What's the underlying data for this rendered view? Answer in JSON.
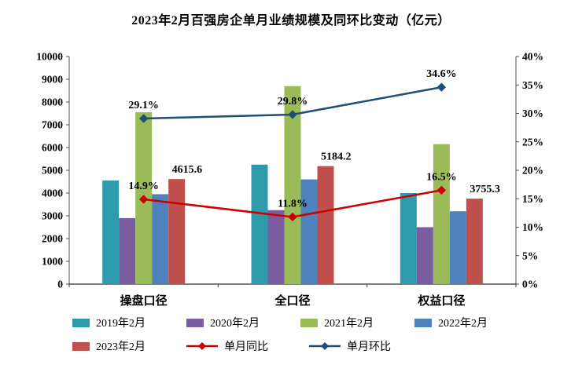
{
  "chart_data": {
    "type": "bar",
    "subtype": "bar-line-combo",
    "title": "2023年2月百强房企单月业绩规模及同环比变动（亿元）",
    "categories": [
      "操盘口径",
      "全口径",
      "权益口径"
    ],
    "series": [
      {
        "name": "2019年2月",
        "type": "bar",
        "axis": "left",
        "color": "#2E9BAC",
        "values": [
          4550,
          5250,
          4000
        ]
      },
      {
        "name": "2020年2月",
        "type": "bar",
        "axis": "left",
        "color": "#7A5CA0",
        "values": [
          2900,
          3250,
          2500
        ]
      },
      {
        "name": "2021年2月",
        "type": "bar",
        "axis": "left",
        "color": "#9BBB59",
        "values": [
          7550,
          8700,
          6150
        ]
      },
      {
        "name": "2022年2月",
        "type": "bar",
        "axis": "left",
        "color": "#4F81BD",
        "values": [
          3950,
          4600,
          3200
        ]
      },
      {
        "name": "2023年2月",
        "type": "bar",
        "axis": "left",
        "color": "#C0504D",
        "values": [
          4615.6,
          5184.2,
          3755.3
        ],
        "data_labels": [
          "4615.6",
          "5184.2",
          "3755.3"
        ]
      },
      {
        "name": "单月同比",
        "type": "line",
        "axis": "right",
        "color": "#CC0000",
        "values": [
          14.9,
          11.8,
          16.5
        ],
        "data_labels": [
          "14.9%",
          "11.8%",
          "16.5%"
        ]
      },
      {
        "name": "单月环比",
        "type": "line",
        "axis": "right",
        "color": "#1F4E79",
        "values": [
          29.1,
          29.8,
          34.6
        ],
        "data_labels": [
          "29.1%",
          "29.8%",
          "34.6%"
        ]
      }
    ],
    "left_axis": {
      "min": 0,
      "max": 10000,
      "step": 1000,
      "tick_labels": [
        "0",
        "1000",
        "2000",
        "3000",
        "4000",
        "5000",
        "6000",
        "7000",
        "8000",
        "9000",
        "10000"
      ]
    },
    "right_axis": {
      "min": 0,
      "max": 40,
      "step": 5,
      "tick_labels": [
        "0%",
        "5%",
        "10%",
        "15%",
        "20%",
        "25%",
        "30%",
        "35%",
        "40%"
      ]
    },
    "legend_position": "bottom",
    "grid": false
  }
}
